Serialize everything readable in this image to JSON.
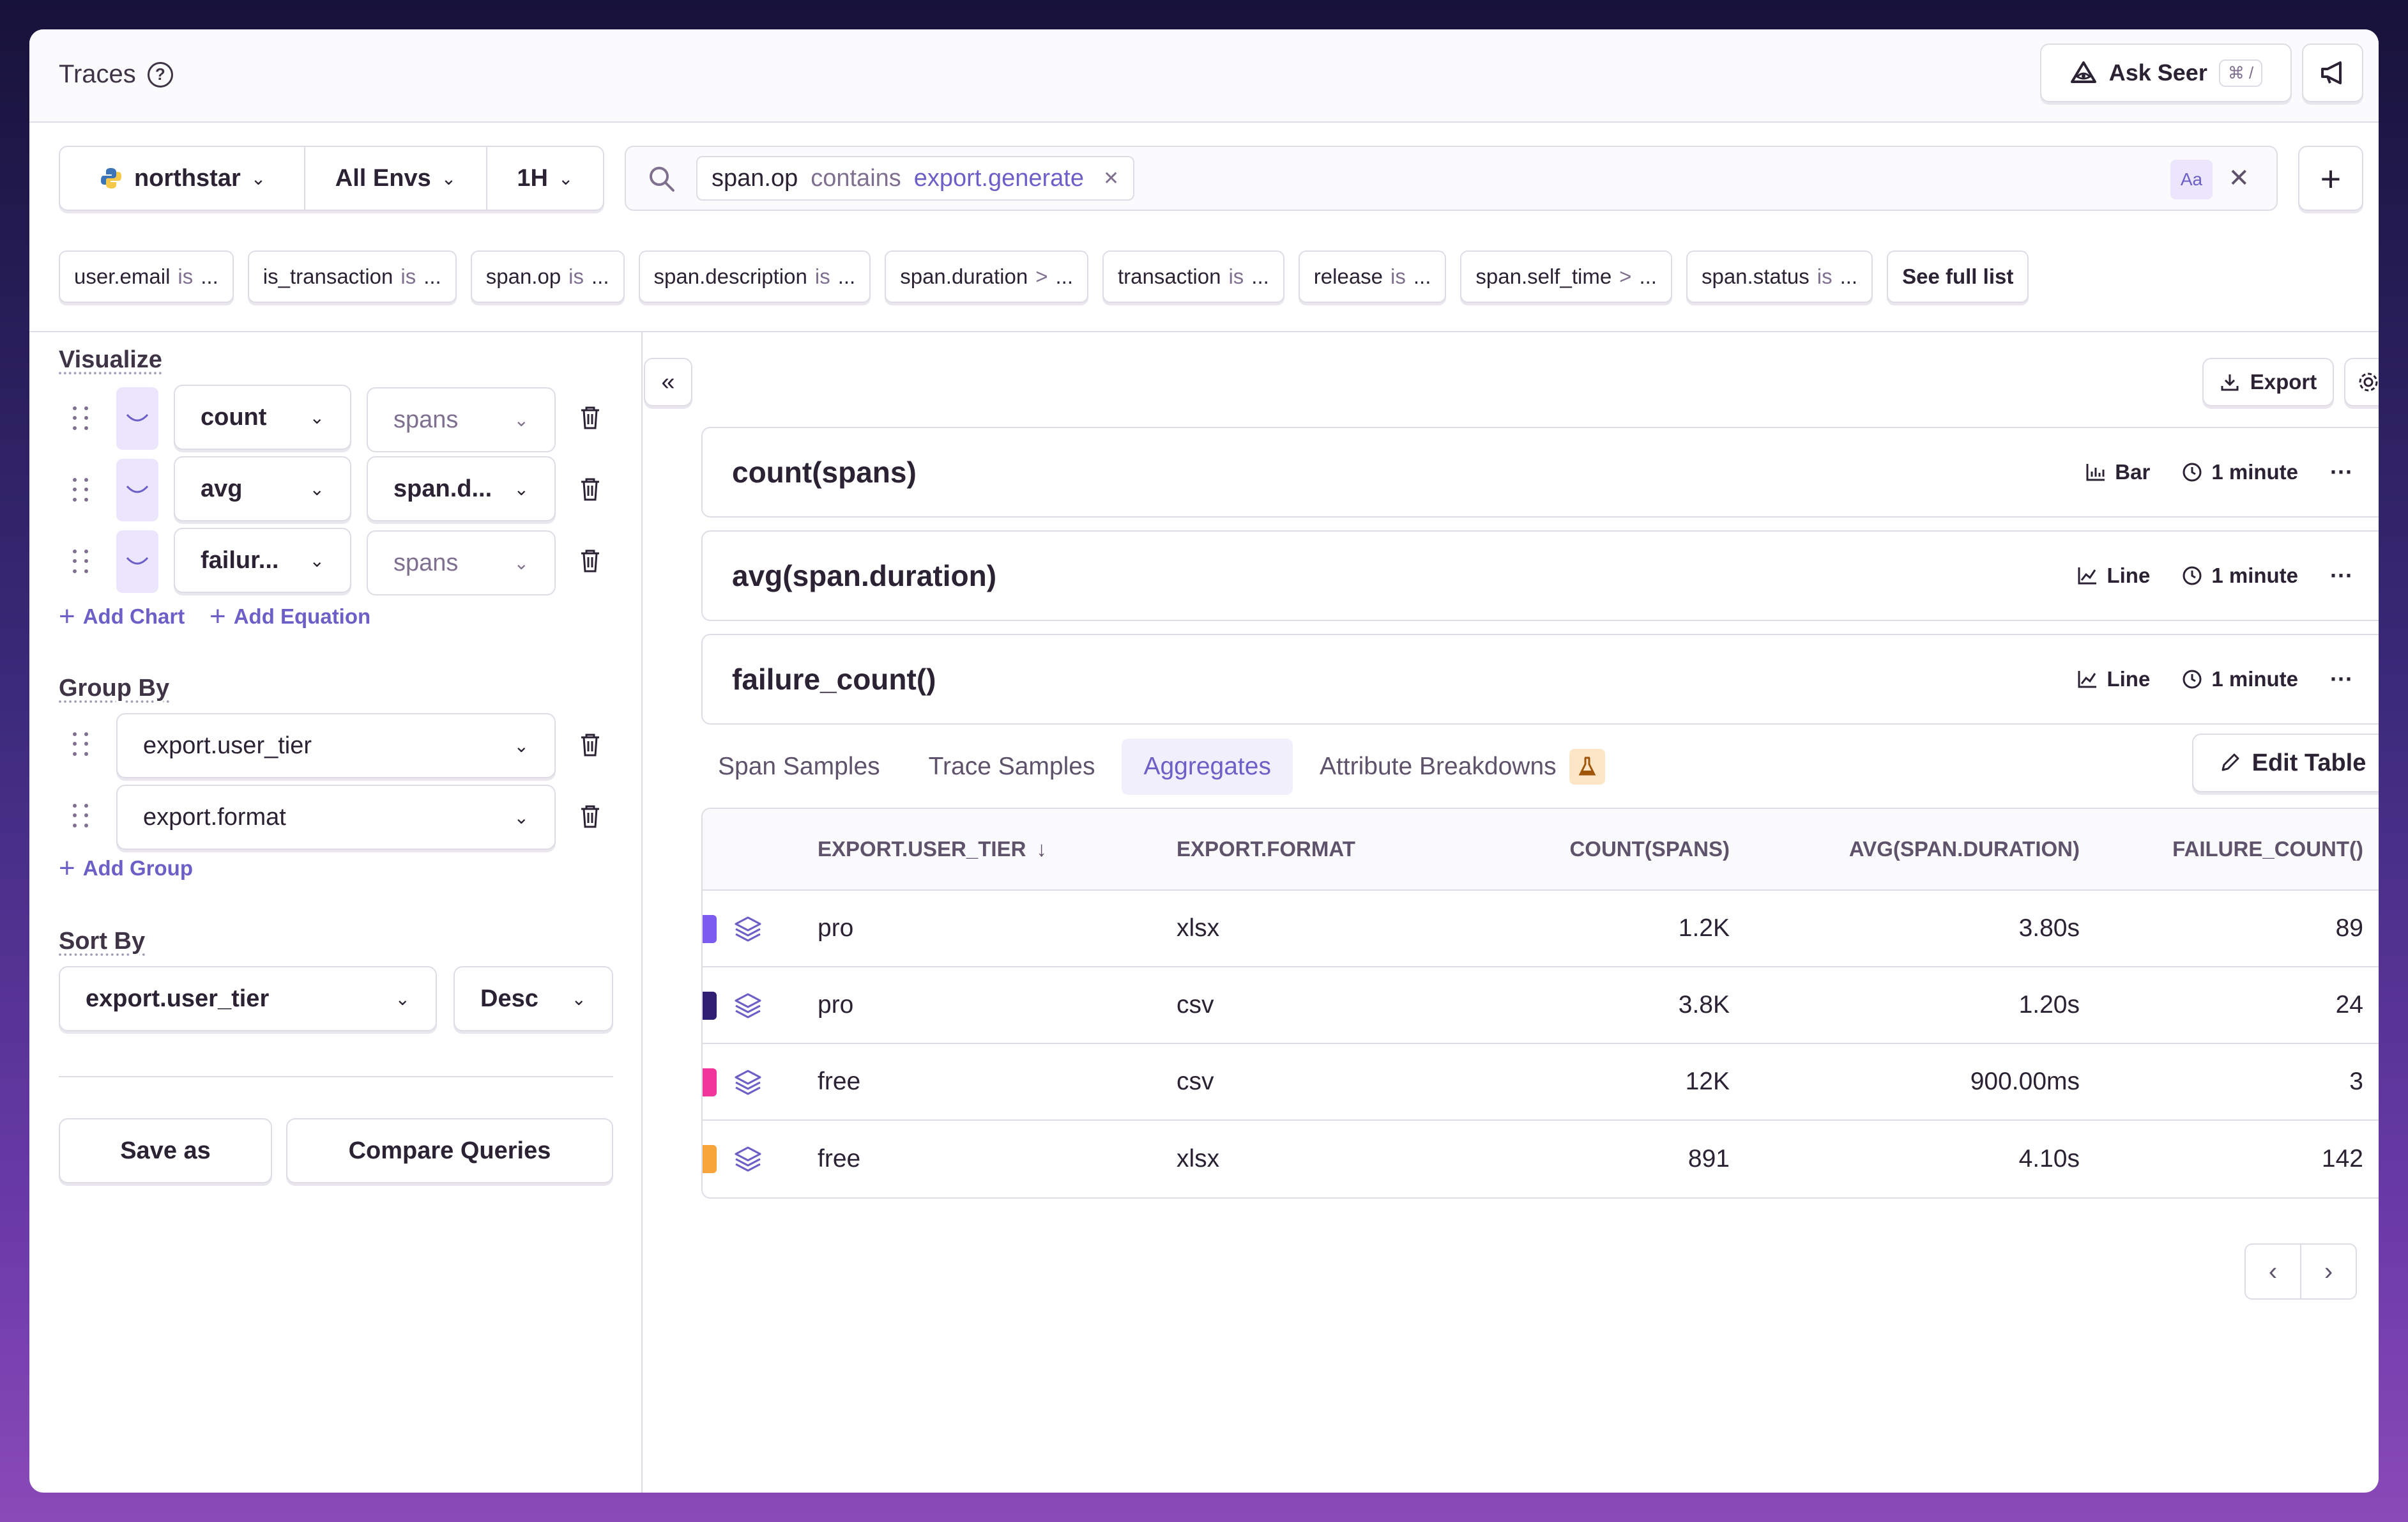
{
  "header": {
    "title": "Traces",
    "ask_label": "Ask Seer",
    "ask_shortcut": "⌘ /"
  },
  "filters": {
    "project": "northstar",
    "env": "All Envs",
    "period": "1H",
    "search_token": {
      "key": "span.op",
      "op": "contains",
      "value": "export.generate"
    },
    "case_toggle": "Aa",
    "suggestions": [
      {
        "key": "user.email",
        "op": "is",
        "val": "..."
      },
      {
        "key": "is_transaction",
        "op": "is",
        "val": "..."
      },
      {
        "key": "span.op",
        "op": "is",
        "val": "..."
      },
      {
        "key": "span.description",
        "op": "is",
        "val": "..."
      },
      {
        "key": "span.duration",
        "op": ">",
        "val": "..."
      },
      {
        "key": "transaction",
        "op": "is",
        "val": "..."
      },
      {
        "key": "release",
        "op": "is",
        "val": "..."
      },
      {
        "key": "span.self_time",
        "op": ">",
        "val": "..."
      },
      {
        "key": "span.status",
        "op": "is",
        "val": "..."
      }
    ],
    "see_full_list": "See full list"
  },
  "visualize": {
    "heading": "Visualize",
    "rows": [
      {
        "func": "count",
        "arg": "spans"
      },
      {
        "func": "avg",
        "arg": "span.d..."
      },
      {
        "func": "failur...",
        "arg": "spans"
      }
    ],
    "add_chart": "Add Chart",
    "add_equation": "Add Equation"
  },
  "group_by": {
    "heading": "Group By",
    "items": [
      "export.user_tier",
      "export.format"
    ],
    "add_group": "Add Group"
  },
  "sort_by": {
    "heading": "Sort By",
    "field": "export.user_tier",
    "order": "Desc"
  },
  "actions": {
    "save_as": "Save as",
    "compare": "Compare Queries"
  },
  "toolbar": {
    "export": "Export"
  },
  "charts": [
    {
      "title": "count(spans)",
      "type": "Bar",
      "interval": "1 minute"
    },
    {
      "title": "avg(span.duration)",
      "type": "Line",
      "interval": "1 minute"
    },
    {
      "title": "failure_count()",
      "type": "Line",
      "interval": "1 minute"
    }
  ],
  "tabs": [
    "Span Samples",
    "Trace Samples",
    "Aggregates",
    "Attribute Breakdowns"
  ],
  "edit_table": "Edit Table",
  "table": {
    "headers": [
      "EXPORT.USER_TIER",
      "EXPORT.FORMAT",
      "COUNT(SPANS)",
      "AVG(SPAN.DURATION)",
      "FAILURE_COUNT()"
    ],
    "sort_arrow": "↓",
    "rows": [
      {
        "color": "#7c5cf0",
        "tier": "pro",
        "format": "xlsx",
        "count": "1.2K",
        "avg": "3.80s",
        "failures": "89"
      },
      {
        "color": "#2e1f73",
        "tier": "pro",
        "format": "csv",
        "count": "3.8K",
        "avg": "1.20s",
        "failures": "24"
      },
      {
        "color": "#f0369a",
        "tier": "free",
        "format": "csv",
        "count": "12K",
        "avg": "900.00ms",
        "failures": "3"
      },
      {
        "color": "#f7a43b",
        "tier": "free",
        "format": "xlsx",
        "count": "891",
        "avg": "4.10s",
        "failures": "142"
      }
    ]
  },
  "colors": {
    "accent": "#6c5fc7",
    "border": "#e0dce5"
  }
}
